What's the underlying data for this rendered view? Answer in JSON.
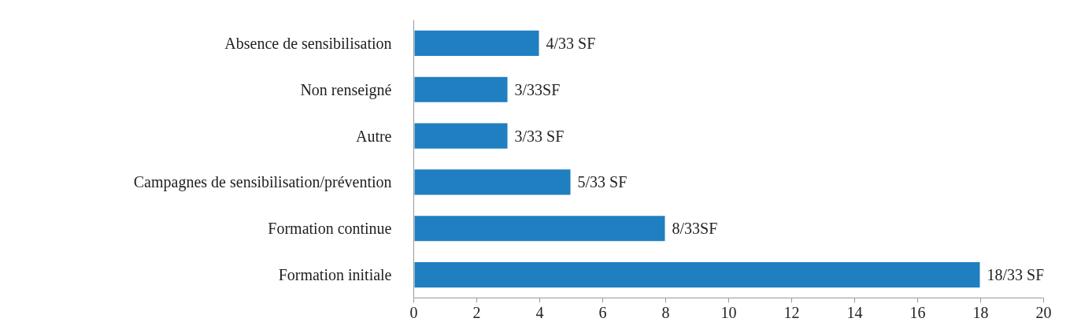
{
  "chart_data": {
    "type": "bar",
    "orientation": "horizontal",
    "categories": [
      "Absence de sensibilisation",
      "Non renseigné",
      "Autre",
      "Campagnes de sensibilisation/prévention",
      "Formation continue",
      "Formation initiale"
    ],
    "values": [
      4,
      3,
      3,
      5,
      8,
      18
    ],
    "value_labels": [
      "4/33 SF",
      "3/33SF",
      "3/33 SF",
      "5/33 SF",
      "8/33SF",
      "18/33 SF"
    ],
    "color": "#1f7fc0",
    "xlim": [
      0,
      20
    ],
    "xticks": [
      0,
      2,
      4,
      6,
      8,
      10,
      12,
      14,
      16,
      18,
      20
    ]
  }
}
